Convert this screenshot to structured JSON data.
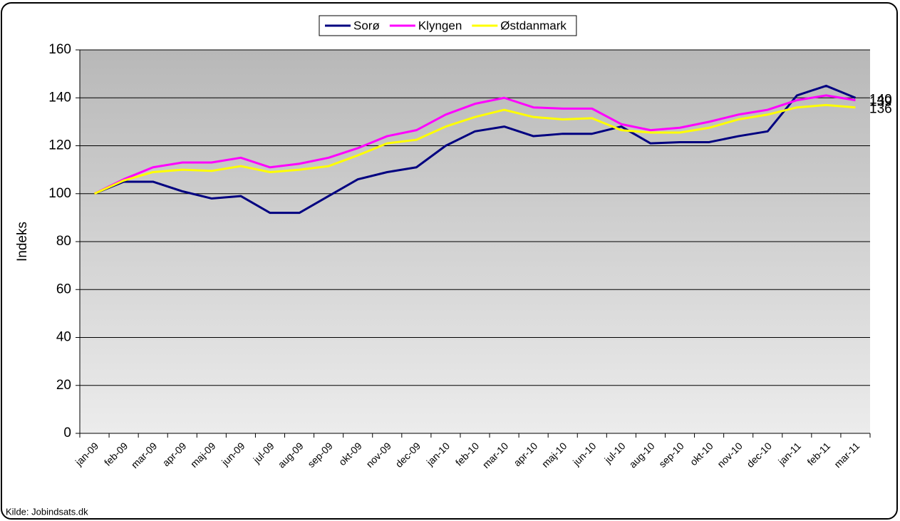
{
  "chart_data": {
    "type": "line",
    "y_label": "Indeks",
    "source": "Kilde: Jobindsats.dk",
    "categories": [
      "jan-09",
      "feb-09",
      "mar-09",
      "apr-09",
      "maj-09",
      "jun-09",
      "jul-09",
      "aug-09",
      "sep-09",
      "okt-09",
      "nov-09",
      "dec-09",
      "jan-10",
      "feb-10",
      "mar-10",
      "apr-10",
      "maj-10",
      "jun-10",
      "jul-10",
      "aug-10",
      "sep-10",
      "okt-10",
      "nov-10",
      "dec-10",
      "jan-11",
      "feb-11",
      "mar-11"
    ],
    "series": [
      {
        "name": "Sorø",
        "color": "#000080",
        "values": [
          100,
          105,
          105,
          101,
          98,
          99,
          92,
          92,
          99,
          106,
          109,
          111,
          120,
          126,
          128,
          124,
          125,
          125,
          128,
          121,
          121.5,
          121.5,
          124,
          126,
          141,
          145,
          140
        ]
      },
      {
        "name": "Klyngen",
        "color": "#ff00ff",
        "values": [
          100,
          106,
          111,
          113,
          113,
          115,
          111,
          112.5,
          115,
          119,
          124,
          126.5,
          133,
          137.5,
          140,
          136,
          135.5,
          135.5,
          129,
          126.5,
          127.5,
          130,
          133,
          135,
          139,
          141,
          139
        ]
      },
      {
        "name": "Østdanmark",
        "color": "#ffff00",
        "values": [
          100,
          105.5,
          109,
          110,
          109.5,
          111.5,
          109,
          110,
          111.5,
          116,
          121,
          122.5,
          128,
          132,
          135,
          132,
          131,
          131.5,
          126.5,
          125.5,
          125.5,
          127.5,
          131,
          133,
          136,
          137,
          136
        ]
      }
    ],
    "ylim": [
      0,
      160
    ],
    "yticks": [
      0,
      20,
      40,
      60,
      80,
      100,
      120,
      140,
      160
    ],
    "grid": true,
    "legend": "top"
  }
}
